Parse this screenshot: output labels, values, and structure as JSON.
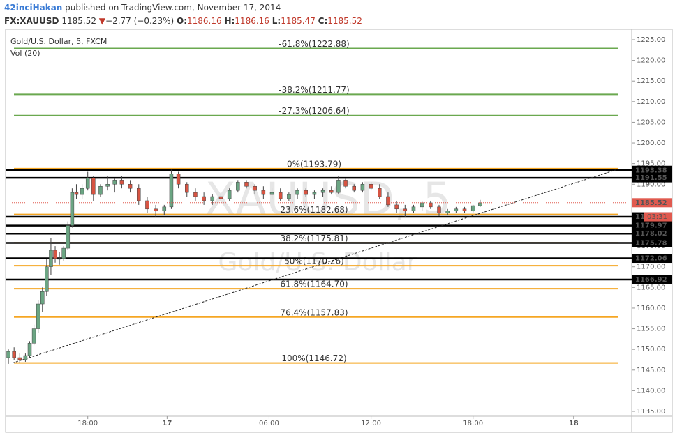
{
  "header": {
    "author": "42inciHakan",
    "published": "published on TradingView.com, November 17, 2014",
    "symbol": "FX:XAUUSD",
    "last": "1185.52",
    "arrow": "▼",
    "change": "−2.77 (−0.23%)",
    "open_label": "O:",
    "open": "1186.16",
    "high_label": "H:",
    "high": "1186.16",
    "low_label": "L:",
    "low": "1185.47",
    "close_label": "C:",
    "close": "1185.52"
  },
  "chart_data": {
    "type": "candlestick",
    "legend_title": "Gold/U.S. Dollar, 5, FXCM",
    "indicator": "Vol (20)",
    "watermark_symbol": "XAUUSD, 5",
    "watermark_name": "Gold/U.S. Dollar",
    "up_color": "#6ba583",
    "down_color": "#d75442",
    "x": [
      2,
      6,
      10,
      14,
      17,
      20,
      23,
      26,
      29,
      32,
      35,
      38,
      41,
      44,
      47,
      50,
      54,
      58,
      62,
      67,
      72,
      77,
      82,
      88,
      94,
      100,
      106,
      112,
      117,
      122,
      128,
      134,
      140,
      146,
      152,
      158,
      164,
      170,
      176,
      182,
      188,
      194,
      200,
      206,
      212,
      218,
      224,
      230,
      235,
      240,
      246,
      252,
      258,
      264,
      270,
      276,
      282,
      288,
      294,
      300,
      306,
      312,
      318,
      324,
      330,
      335
    ],
    "open": [
      1148,
      1149.5,
      1148,
      1147.5,
      1148.5,
      1151.5,
      1155,
      1161,
      1164,
      1170,
      1174,
      1172,
      1172,
      1174.5,
      1180,
      1188,
      1187.5,
      1189,
      1191.5,
      1187.5,
      1189.5,
      1190,
      1191,
      1190,
      1189,
      1186,
      1184,
      1183.5,
      1184.5,
      1192.5,
      1190,
      1188,
      1187,
      1186,
      1187,
      1186.5,
      1188.5,
      1190.5,
      1189.5,
      1188.5,
      1187.5,
      1188,
      1186.5,
      1187.5,
      1188.5,
      1187.5,
      1188,
      1188.5,
      1188,
      1191,
      1189.5,
      1188.5,
      1190,
      1189,
      1187,
      1185,
      1184,
      1183.5,
      1184.5,
      1185.5,
      1184.5,
      1183,
      1183.5,
      1184,
      1183.5,
      1184.8
    ],
    "high": [
      1150,
      1150.5,
      1149,
      1149,
      1152,
      1156,
      1162,
      1165,
      1172,
      1177,
      1175,
      1173.5,
      1175,
      1181,
      1189,
      1190,
      1190,
      1193,
      1192,
      1190,
      1192,
      1191.5,
      1192,
      1191,
      1190,
      1187,
      1185,
      1185,
      1193.5,
      1193,
      1190.5,
      1189,
      1188,
      1187.5,
      1188,
      1189,
      1191,
      1191,
      1190,
      1189.5,
      1189,
      1189,
      1188,
      1189,
      1189,
      1188.5,
      1189,
      1189.5,
      1192,
      1191.5,
      1190,
      1190.5,
      1190.5,
      1190,
      1188,
      1186,
      1185,
      1185,
      1186,
      1186,
      1185,
      1184,
      1184.5,
      1184.5,
      1185,
      1186.2
    ],
    "low": [
      1146.5,
      1147.5,
      1146.7,
      1147,
      1148,
      1151,
      1154,
      1159,
      1163,
      1168,
      1171,
      1170.5,
      1171.5,
      1174,
      1179.5,
      1186.5,
      1186.5,
      1188.5,
      1186,
      1187,
      1188.5,
      1188,
      1189,
      1188,
      1185,
      1183,
      1182,
      1182.5,
      1184,
      1189,
      1187,
      1186,
      1185,
      1185,
      1185.5,
      1186,
      1188,
      1189,
      1187.5,
      1186.5,
      1186.5,
      1186,
      1186,
      1186.5,
      1187,
      1186.5,
      1187,
      1187.5,
      1187.5,
      1189,
      1188,
      1188,
      1188.5,
      1186.5,
      1184.5,
      1183,
      1182,
      1183,
      1183.5,
      1184,
      1182.3,
      1182.5,
      1183,
      1183,
      1183.2,
      1184.5
    ],
    "close": [
      1149.5,
      1148,
      1147.5,
      1148.5,
      1151.5,
      1155,
      1161,
      1164,
      1170,
      1174,
      1172,
      1172,
      1174.5,
      1180,
      1188,
      1187.5,
      1189,
      1191.5,
      1187.5,
      1189.5,
      1190,
      1191,
      1190,
      1189,
      1186,
      1184,
      1183.5,
      1184.5,
      1192.5,
      1190,
      1188,
      1187,
      1186,
      1187,
      1186.5,
      1188.5,
      1190.5,
      1189.5,
      1188.5,
      1187.5,
      1188,
      1186.5,
      1187.5,
      1188.5,
      1187.5,
      1188,
      1188.5,
      1188,
      1191,
      1189.5,
      1188.5,
      1190,
      1189,
      1187,
      1185,
      1184,
      1183.5,
      1184.5,
      1185.5,
      1184.5,
      1183,
      1183.5,
      1184,
      1183.5,
      1184.8,
      1185.5
    ],
    "xlim": [
      0,
      442
    ],
    "xticks": [
      {
        "value": 58,
        "label": "18:00"
      },
      {
        "value": 114,
        "label": "17"
      },
      {
        "value": 186,
        "label": "06:00"
      },
      {
        "value": 258,
        "label": "12:00"
      },
      {
        "value": 330,
        "label": "18:00"
      },
      {
        "value": 401,
        "label": "18"
      }
    ],
    "ylim": [
      1133.82,
      1227.53
    ],
    "yticks": [
      {
        "value": 1135,
        "label": "1135.00"
      },
      {
        "value": 1140,
        "label": "1140.00"
      },
      {
        "value": 1145,
        "label": "1145.00"
      },
      {
        "value": 1150,
        "label": "1150.00"
      },
      {
        "value": 1155,
        "label": "1155.00"
      },
      {
        "value": 1160,
        "label": "1160.00"
      },
      {
        "value": 1165,
        "label": "1165.00"
      },
      {
        "value": 1170,
        "label": "1170.00"
      },
      {
        "value": 1175,
        "label": "1175.00"
      },
      {
        "value": 1180,
        "label": "1180.00"
      },
      {
        "value": 1185,
        "label": "1185.00"
      },
      {
        "value": 1190,
        "label": "1190.00"
      },
      {
        "value": 1195,
        "label": "1195.00"
      },
      {
        "value": 1200,
        "label": "1200.00"
      },
      {
        "value": 1205,
        "label": "1205.00"
      },
      {
        "value": 1210,
        "label": "1210.00"
      },
      {
        "value": 1215,
        "label": "1215.00"
      },
      {
        "value": 1220,
        "label": "1220.00"
      },
      {
        "value": 1225,
        "label": "1225.00"
      }
    ],
    "fib_levels": [
      {
        "value": 1222.88,
        "label": "-61.8%(1222.88)",
        "color": "#6aa84f"
      },
      {
        "value": 1211.77,
        "label": "-38.2%(1211.77)",
        "color": "#6aa84f"
      },
      {
        "value": 1206.64,
        "label": "-27.3%(1206.64)",
        "color": "#6aa84f"
      },
      {
        "value": 1193.79,
        "label": "0%(1193.79)",
        "color": "#f5a623"
      },
      {
        "value": 1182.68,
        "label": "23.6%(1182.68)",
        "color": "#f5a623"
      },
      {
        "value": 1175.81,
        "label": "38.2%(1175.81)",
        "color": "#f5a623"
      },
      {
        "value": 1170.26,
        "label": "50%(1170.26)",
        "color": "#f5a623"
      },
      {
        "value": 1164.7,
        "label": "61.8%(1164.70)",
        "color": "#f5a623"
      },
      {
        "value": 1157.83,
        "label": "76.4%(1157.83)",
        "color": "#f5a623"
      },
      {
        "value": 1146.72,
        "label": "100%(1146.72)",
        "color": "#f5a623"
      }
    ],
    "levels": [
      {
        "value": 1193.38,
        "label": "1193.38"
      },
      {
        "value": 1191.55,
        "label": "1191.55"
      },
      {
        "value": 1182.1,
        "label": "11"
      },
      {
        "value": 1179.97,
        "label": "1179.97"
      },
      {
        "value": 1178.02,
        "label": "1178.02"
      },
      {
        "value": 1175.78,
        "label": "1175.78"
      },
      {
        "value": 1172.06,
        "label": "1172.06"
      },
      {
        "value": 1166.92,
        "label": "1166.92"
      }
    ],
    "last_price": {
      "value": 1185.52,
      "label": "1185.52",
      "countdown": "03:31",
      "color": "#e05a4f"
    },
    "trendline": {
      "x": [
        5,
        432
      ],
      "y": [
        1146.72,
        1193.6
      ]
    }
  }
}
